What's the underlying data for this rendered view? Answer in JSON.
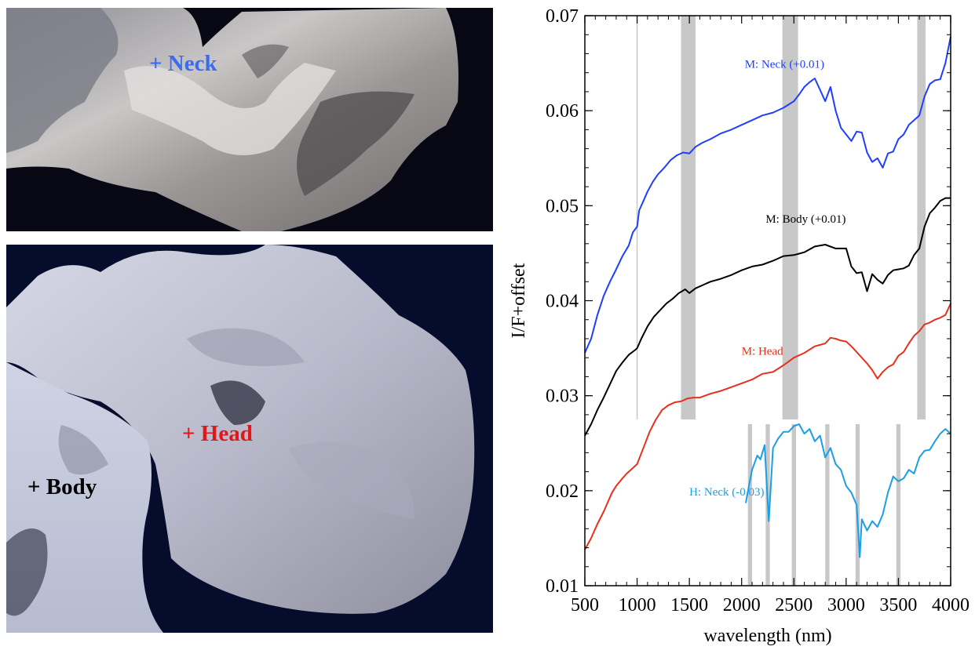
{
  "images": {
    "top": {
      "labels": [
        {
          "text": "+ Neck",
          "color": "#3a6cf0"
        }
      ]
    },
    "bottom": {
      "labels": [
        {
          "text": "+ Head",
          "color": "#e01818"
        },
        {
          "text": "+ Body",
          "color": "#000000"
        }
      ]
    }
  },
  "chart_data": {
    "type": "line",
    "xlabel": "wavelength (nm)",
    "ylabel": "I/F+offset",
    "xlim": [
      500,
      4000
    ],
    "ylim": [
      0.01,
      0.07
    ],
    "x_ticks": [
      500,
      1000,
      1500,
      2000,
      2500,
      3000,
      3500,
      4000
    ],
    "y_ticks": [
      "0.01",
      "0.02",
      "0.03",
      "0.04",
      "0.05",
      "0.06",
      "0.07"
    ],
    "grid": false,
    "shaded_bands_upper": [
      [
        1420,
        1560
      ],
      [
        2390,
        2540
      ],
      [
        3680,
        3760
      ]
    ],
    "thin_line_at": 1000,
    "shaded_bands_lower": [
      [
        2060,
        2100
      ],
      [
        2230,
        2270
      ],
      [
        2480,
        2520
      ],
      [
        2800,
        2840
      ],
      [
        3090,
        3130
      ],
      [
        3480,
        3520
      ]
    ],
    "series": [
      {
        "name": "M: Neck (+0.01)",
        "color": "#1f3fff",
        "x": [
          500,
          560,
          620,
          680,
          740,
          800,
          860,
          920,
          960,
          1000,
          1020,
          1060,
          1100,
          1150,
          1200,
          1260,
          1320,
          1380,
          1440,
          1500,
          1560,
          1620,
          1700,
          1800,
          1900,
          2000,
          2100,
          2200,
          2300,
          2400,
          2500,
          2550,
          2600,
          2650,
          2700,
          2750,
          2800,
          2850,
          2900,
          2950,
          3000,
          3050,
          3100,
          3150,
          3200,
          3250,
          3300,
          3350,
          3400,
          3450,
          3500,
          3550,
          3600,
          3650,
          3700,
          3750,
          3800,
          3850,
          3900,
          3950,
          4000
        ],
        "y": [
          0.0345,
          0.036,
          0.0385,
          0.0405,
          0.042,
          0.0433,
          0.0447,
          0.0458,
          0.0472,
          0.0478,
          0.0495,
          0.0505,
          0.0515,
          0.0525,
          0.0533,
          0.054,
          0.0548,
          0.0553,
          0.0556,
          0.0555,
          0.0562,
          0.0566,
          0.057,
          0.0576,
          0.058,
          0.0585,
          0.059,
          0.0595,
          0.0598,
          0.0603,
          0.061,
          0.0617,
          0.0625,
          0.063,
          0.0634,
          0.0622,
          0.061,
          0.0625,
          0.06,
          0.0582,
          0.0575,
          0.0568,
          0.0578,
          0.0577,
          0.0556,
          0.0546,
          0.055,
          0.054,
          0.0555,
          0.0557,
          0.057,
          0.0575,
          0.0585,
          0.059,
          0.0595,
          0.0615,
          0.0628,
          0.0632,
          0.0633,
          0.065,
          0.0678
        ]
      },
      {
        "name": "M: Body (+0.01)",
        "color": "#000000",
        "x": [
          500,
          560,
          620,
          680,
          740,
          800,
          860,
          920,
          980,
          1000,
          1040,
          1100,
          1160,
          1220,
          1280,
          1340,
          1400,
          1460,
          1500,
          1560,
          1620,
          1700,
          1800,
          1900,
          2000,
          2100,
          2200,
          2300,
          2400,
          2500,
          2600,
          2700,
          2800,
          2900,
          3000,
          3050,
          3100,
          3150,
          3200,
          3250,
          3300,
          3350,
          3400,
          3450,
          3500,
          3550,
          3600,
          3650,
          3700,
          3750,
          3800,
          3850,
          3900,
          3950,
          4000
        ],
        "y": [
          0.0258,
          0.027,
          0.0285,
          0.0298,
          0.0312,
          0.0326,
          0.0335,
          0.0343,
          0.0348,
          0.035,
          0.036,
          0.0373,
          0.0383,
          0.039,
          0.0397,
          0.0402,
          0.0408,
          0.0412,
          0.0408,
          0.0413,
          0.0416,
          0.042,
          0.0423,
          0.0427,
          0.0432,
          0.0436,
          0.0438,
          0.0442,
          0.0447,
          0.0448,
          0.0451,
          0.0457,
          0.0459,
          0.0455,
          0.0455,
          0.0436,
          0.0429,
          0.043,
          0.041,
          0.0428,
          0.0422,
          0.0418,
          0.0427,
          0.0432,
          0.0433,
          0.0434,
          0.0437,
          0.0448,
          0.0455,
          0.0478,
          0.0492,
          0.0498,
          0.0505,
          0.0508,
          0.0508
        ]
      },
      {
        "name": "M: Head",
        "color": "#e8301a",
        "x": [
          500,
          560,
          620,
          680,
          720,
          760,
          800,
          860,
          900,
          940,
          1000,
          1060,
          1120,
          1180,
          1240,
          1300,
          1360,
          1420,
          1480,
          1540,
          1600,
          1700,
          1800,
          1900,
          2000,
          2100,
          2200,
          2300,
          2400,
          2500,
          2600,
          2700,
          2800,
          2850,
          2900,
          2950,
          3000,
          3050,
          3100,
          3150,
          3200,
          3250,
          3300,
          3350,
          3400,
          3450,
          3500,
          3550,
          3600,
          3650,
          3700,
          3750,
          3800,
          3850,
          3900,
          3950,
          4000
        ],
        "y": [
          0.0138,
          0.015,
          0.0165,
          0.0178,
          0.0188,
          0.0198,
          0.0205,
          0.0213,
          0.0218,
          0.0222,
          0.0228,
          0.0245,
          0.0262,
          0.0275,
          0.0285,
          0.029,
          0.0293,
          0.0294,
          0.0297,
          0.0298,
          0.0298,
          0.0302,
          0.0305,
          0.0309,
          0.0313,
          0.0317,
          0.0323,
          0.0325,
          0.0332,
          0.034,
          0.0345,
          0.0352,
          0.0355,
          0.0361,
          0.036,
          0.0358,
          0.0357,
          0.0352,
          0.0346,
          0.034,
          0.0334,
          0.0327,
          0.0318,
          0.0325,
          0.033,
          0.0333,
          0.0342,
          0.0346,
          0.0355,
          0.0363,
          0.0368,
          0.0375,
          0.0377,
          0.038,
          0.0382,
          0.0385,
          0.0397
        ]
      },
      {
        "name": "H: Neck (-0.03)",
        "color": "#1a9fe6",
        "x": [
          2040,
          2070,
          2100,
          2150,
          2180,
          2220,
          2260,
          2300,
          2350,
          2400,
          2450,
          2500,
          2550,
          2600,
          2650,
          2700,
          2750,
          2800,
          2850,
          2900,
          2950,
          3000,
          3050,
          3100,
          3130,
          3150,
          3200,
          3250,
          3300,
          3350,
          3400,
          3450,
          3500,
          3550,
          3600,
          3650,
          3700,
          3750,
          3800,
          3850,
          3900,
          3950,
          4000
        ],
        "y": [
          0.0187,
          0.0205,
          0.0222,
          0.0237,
          0.0233,
          0.0248,
          0.0168,
          0.0245,
          0.0255,
          0.0262,
          0.0262,
          0.0268,
          0.027,
          0.026,
          0.0265,
          0.0252,
          0.0258,
          0.0235,
          0.0245,
          0.0228,
          0.0222,
          0.0205,
          0.0198,
          0.0185,
          0.013,
          0.017,
          0.0158,
          0.0168,
          0.0162,
          0.0175,
          0.0198,
          0.0215,
          0.021,
          0.0213,
          0.0222,
          0.0218,
          0.0235,
          0.0242,
          0.0243,
          0.0252,
          0.026,
          0.0265,
          0.026
        ]
      }
    ],
    "annotations": [
      {
        "text": "M: Neck (+0.01)",
        "x": 2030,
        "y": 0.0645,
        "color": "#1f3fff"
      },
      {
        "text": "M: Body (+0.01)",
        "x": 2230,
        "y": 0.0482,
        "color": "#000000"
      },
      {
        "text": "M: Head",
        "x": 2000,
        "y": 0.0343,
        "color": "#e8301a"
      },
      {
        "text": "H: Neck (-0.03)",
        "x": 1500,
        "y": 0.0195,
        "color": "#1a9fe6"
      }
    ]
  }
}
